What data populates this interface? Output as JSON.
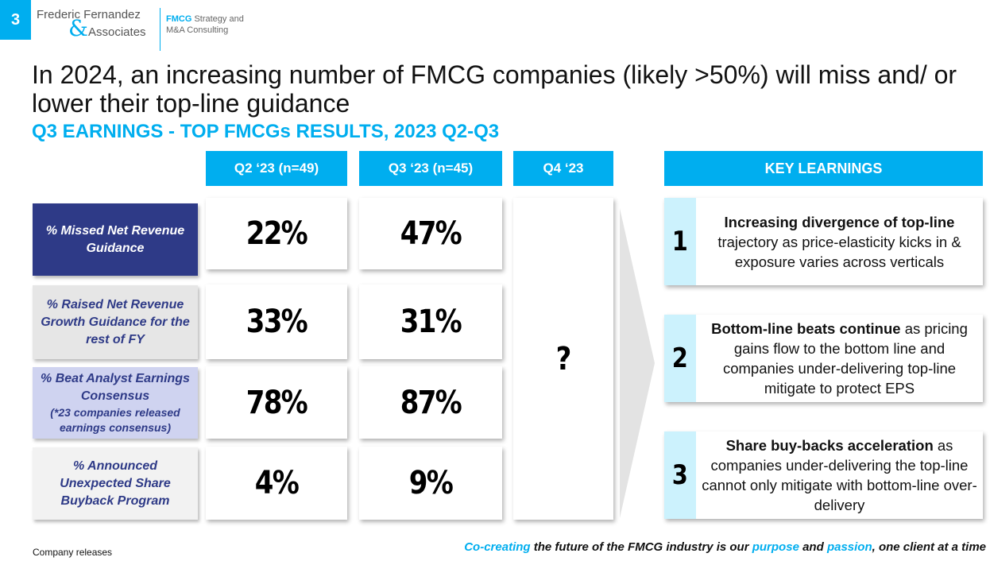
{
  "header": {
    "page_number": "3",
    "logo": {
      "line1": "Frederic Fernandez",
      "amp": "&",
      "line2": "Associates"
    },
    "tagline": {
      "highlight": "FMCG",
      "rest1": " Strategy and",
      "line2": "M&A Consulting"
    }
  },
  "title": "In 2024, an increasing number of FMCG companies (likely >50%) will miss and/ or lower their top-line guidance",
  "subtitle": "Q3 EARNINGS - TOP FMCGs RESULTS, 2023 Q2-Q3",
  "table": {
    "columns": [
      "Q2 ‘23 (n=49)",
      "Q3 ‘23  (n=45)",
      "Q4 ‘23"
    ],
    "rows": [
      {
        "label": "% Missed Net Revenue Guidance",
        "note": "",
        "q2": "22%",
        "q3": "47%",
        "bg": "#2e3a87",
        "fg": "#ffffff"
      },
      {
        "label": "% Raised Net Revenue Growth Guidance for the rest of FY",
        "note": "",
        "q2": "33%",
        "q3": "31%",
        "bg": "#e6e6e6",
        "fg": "#2e3a87"
      },
      {
        "label": "% Beat Analyst Earnings Consensus",
        "note": "(*23 companies released earnings consensus)",
        "q2": "78%",
        "q3": "87%",
        "bg": "#cfd3f0",
        "fg": "#2e3a87"
      },
      {
        "label": "% Announced Unexpected Share Buyback Program",
        "note": "",
        "q2": "4%",
        "q3": "9%",
        "bg": "#f2f2f2",
        "fg": "#2e3a87"
      }
    ],
    "q4_value": "?"
  },
  "key_learnings": {
    "title": "KEY LEARNINGS",
    "items": [
      {
        "num": "1",
        "bold": "Increasing divergence of top-line",
        "rest": " trajectory as price-elasticity kicks in & exposure varies across verticals"
      },
      {
        "num": "2",
        "bold": "Bottom-line beats continue",
        "rest": " as pricing gains flow to the bottom line and companies under-delivering top-line mitigate to protect EPS"
      },
      {
        "num": "3",
        "bold": "Share buy-backs acceleration",
        "rest": " as companies under-delivering the top-line cannot only mitigate with bottom-line over-delivery"
      }
    ]
  },
  "source": "Company releases",
  "footer": {
    "p1": "Co-creating",
    "p2": " the future of the FMCG industry is our ",
    "p3": "purpose",
    "p4": " and ",
    "p5": "passion",
    "p6": ", one client at a time"
  },
  "colors": {
    "accent": "#00aeef",
    "navy": "#2e3a87",
    "light_blue": "#ccf2fd"
  }
}
